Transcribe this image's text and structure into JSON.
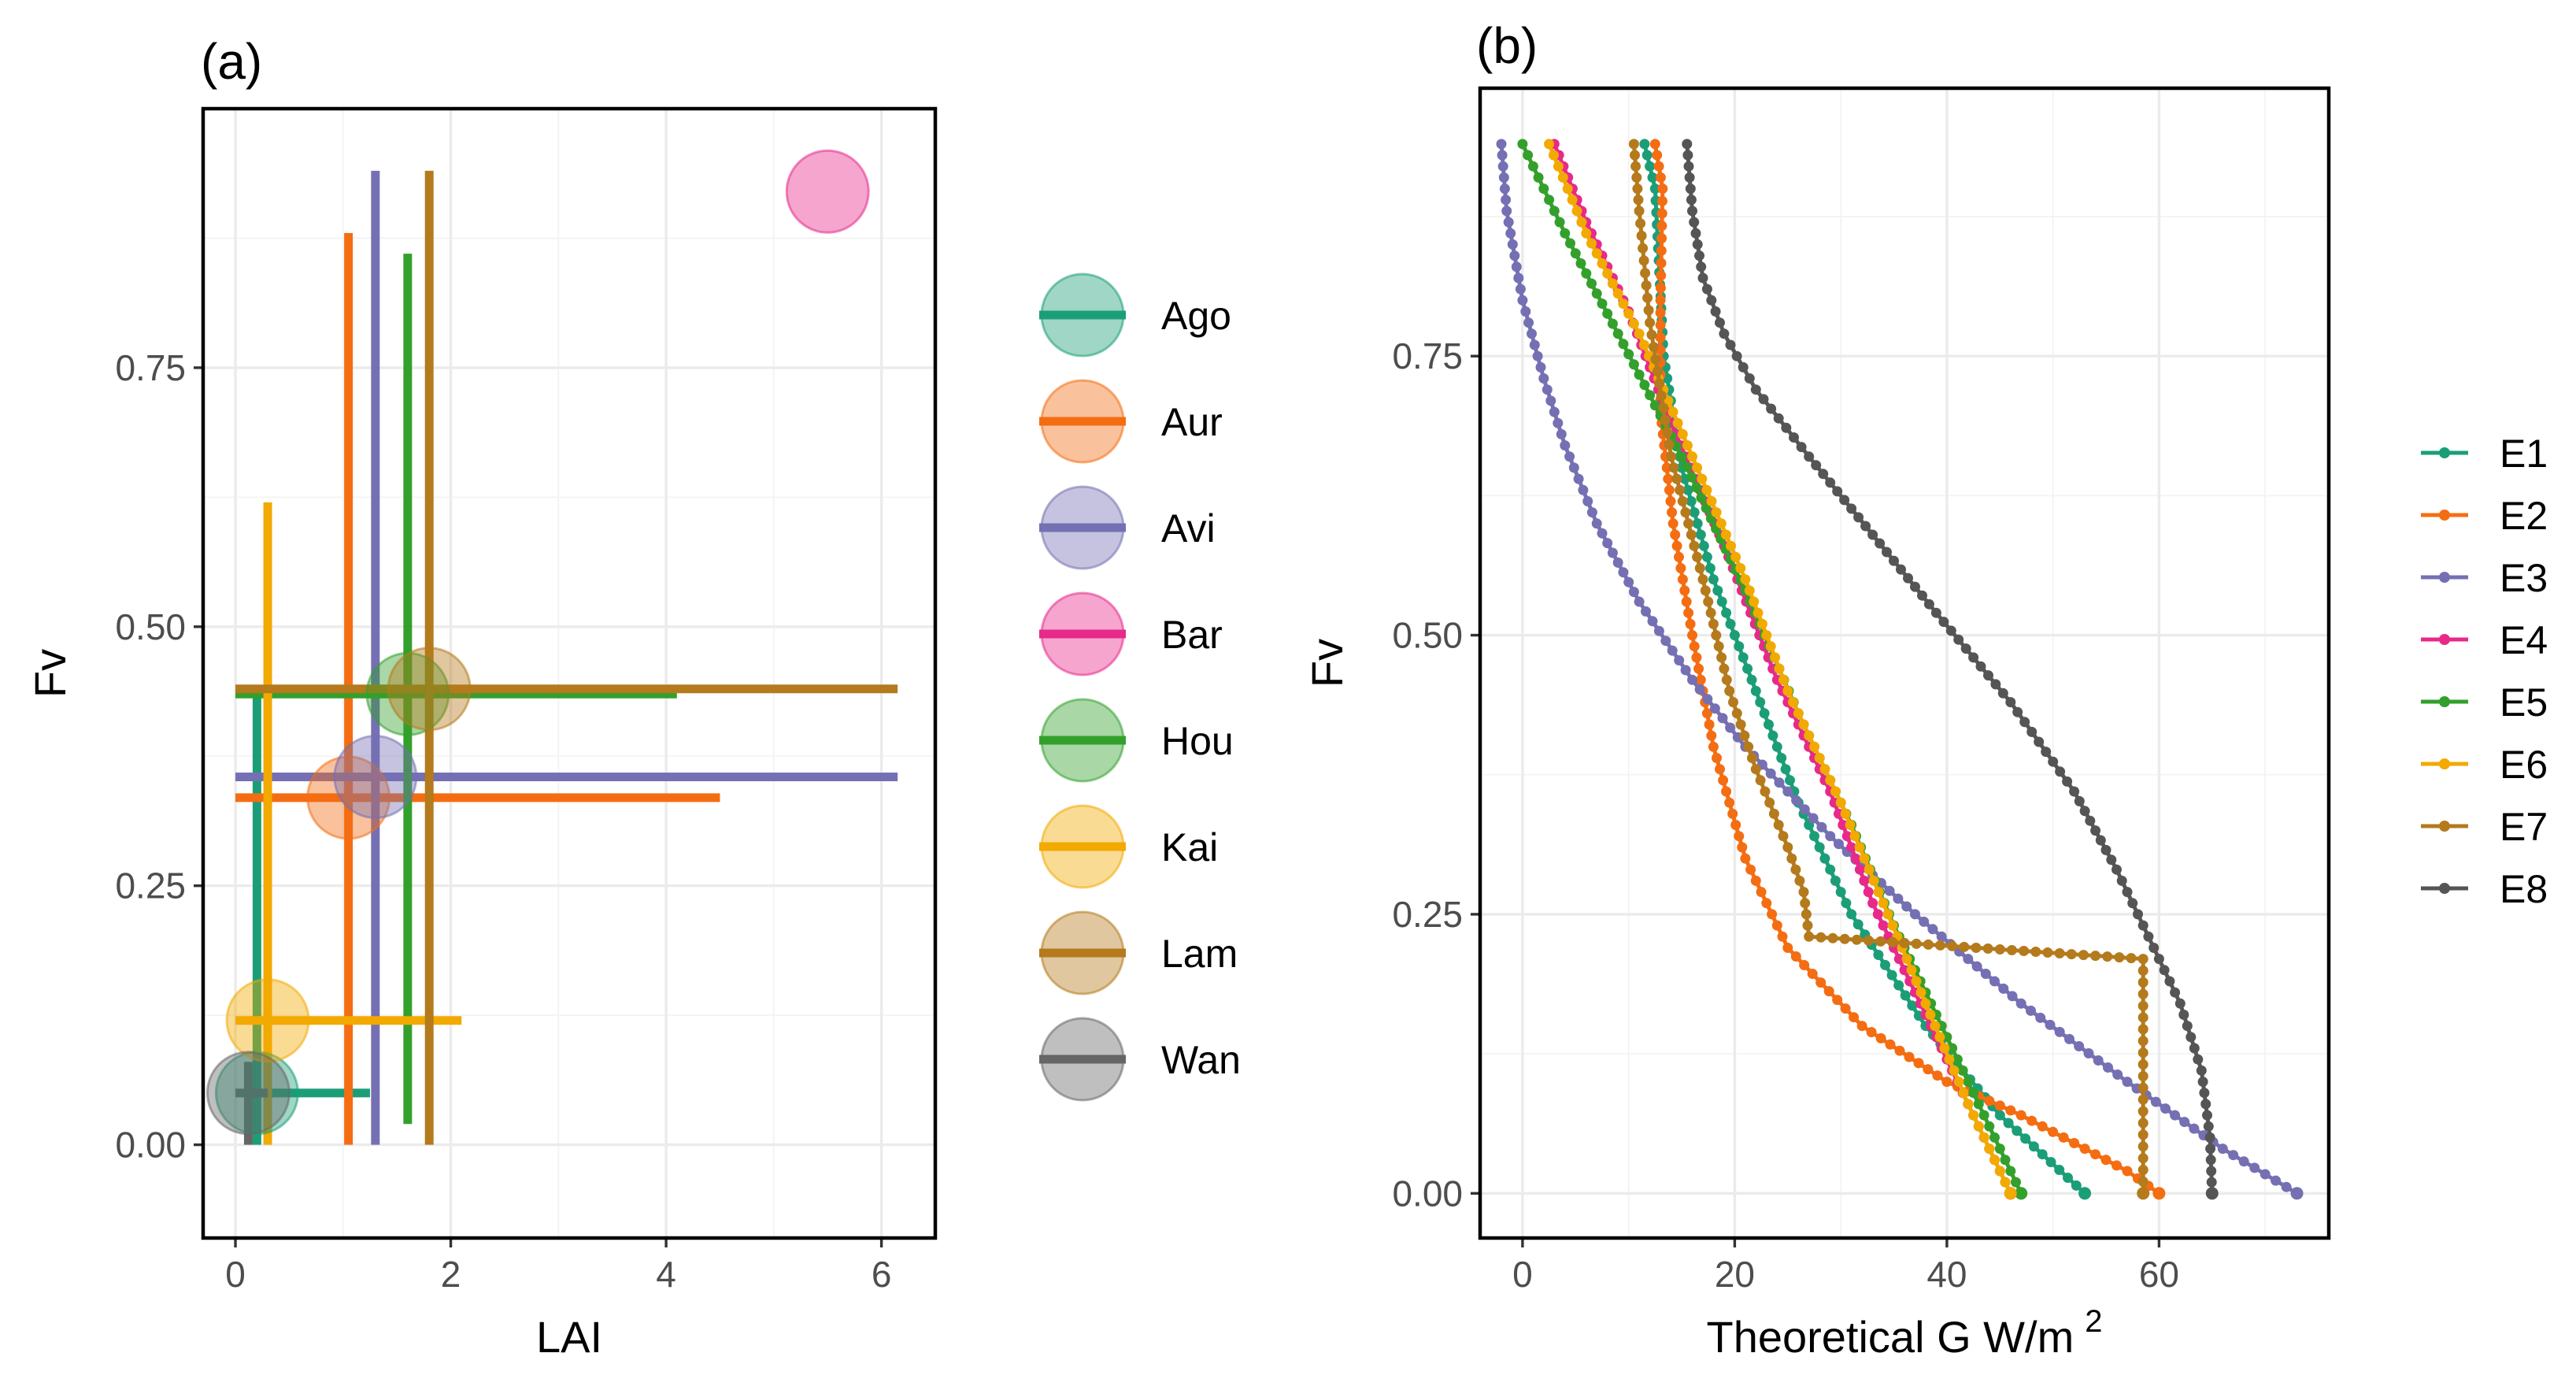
{
  "figure": {
    "chart_data": [
      {
        "panel": "(a)",
        "type": "scatter",
        "xlabel": "LAI",
        "ylabel": "Fv",
        "xlim": [
          -0.3,
          6.5
        ],
        "ylim": [
          -0.09,
          1.0
        ],
        "x_ticks": [
          0,
          2,
          4,
          6
        ],
        "x_tick_labels": [
          "0",
          "2",
          "4",
          "6"
        ],
        "y_ticks": [
          0,
          0.25,
          0.5,
          0.75
        ],
        "y_tick_labels": [
          "0.00",
          "0.25",
          "0.50",
          "0.75"
        ],
        "grid": true,
        "legend_position": "right",
        "series": [
          {
            "name": "Ago",
            "color": "#1b9e77",
            "lai": 0.2,
            "fv": 0.05,
            "lai_min": 0.1,
            "lai_max": 1.25,
            "fv_min": 0.0,
            "fv_max": 0.44
          },
          {
            "name": "Aur",
            "color": "#f46d12",
            "lai": 1.05,
            "fv": 0.335,
            "lai_min": 0.0,
            "lai_max": 4.5,
            "fv_min": 0.0,
            "fv_max": 0.88
          },
          {
            "name": "Avi",
            "color": "#7570b3",
            "lai": 1.3,
            "fv": 0.355,
            "lai_min": 0.0,
            "lai_max": 6.15,
            "fv_min": 0.0,
            "fv_max": 0.94
          },
          {
            "name": "Bar",
            "color": "#e7298a",
            "lai": 5.5,
            "fv": 0.92,
            "lai_min": 5.5,
            "lai_max": 5.5,
            "fv_min": 0.92,
            "fv_max": 0.92
          },
          {
            "name": "Hou",
            "color": "#33a02c",
            "lai": 1.6,
            "fv": 0.435,
            "lai_min": 0.0,
            "lai_max": 4.1,
            "fv_min": 0.02,
            "fv_max": 0.86
          },
          {
            "name": "Kai",
            "color": "#f2a900",
            "lai": 0.3,
            "fv": 0.12,
            "lai_min": 0.0,
            "lai_max": 2.1,
            "fv_min": 0.0,
            "fv_max": 0.62
          },
          {
            "name": "Lam",
            "color": "#b47a1c",
            "lai": 1.8,
            "fv": 0.44,
            "lai_min": 0.0,
            "lai_max": 6.15,
            "fv_min": 0.0,
            "fv_max": 0.94
          },
          {
            "name": "Wan",
            "color": "#666666",
            "lai": 0.12,
            "fv": 0.05,
            "lai_min": 0.0,
            "lai_max": 0.3,
            "fv_min": 0.0,
            "fv_max": 0.08
          }
        ]
      },
      {
        "panel": "(b)",
        "type": "line",
        "xlabel": "Theoretical G  W/m",
        "xlabel_sup": "2",
        "ylabel": "Fv",
        "xlim": [
          -4,
          76
        ],
        "ylim": [
          -0.04,
          0.99
        ],
        "x_ticks": [
          0,
          20,
          40,
          60
        ],
        "x_tick_labels": [
          "0",
          "20",
          "40",
          "60"
        ],
        "y_ticks": [
          0,
          0.25,
          0.5,
          0.75
        ],
        "y_tick_labels": [
          "0.00",
          "0.25",
          "0.50",
          "0.75"
        ],
        "grid": true,
        "legend_position": "right",
        "series": [
          {
            "name": "E1",
            "color": "#1b9e77",
            "points": [
              [
                11.5,
                0.94
              ],
              [
                12.5,
                0.9
              ],
              [
                13.3,
                0.75
              ],
              [
                15,
                0.65
              ],
              [
                18,
                0.55
              ],
              [
                22,
                0.45
              ],
              [
                26,
                0.35
              ],
              [
                31,
                0.25
              ],
              [
                38,
                0.15
              ],
              [
                45,
                0.07
              ],
              [
                53,
                0.0
              ]
            ]
          },
          {
            "name": "E2",
            "color": "#f46d12",
            "points": [
              [
                12.5,
                0.94
              ],
              [
                13.2,
                0.9
              ],
              [
                13.0,
                0.8
              ],
              [
                13.0,
                0.7
              ],
              [
                14.2,
                0.6
              ],
              [
                16,
                0.5
              ],
              [
                18,
                0.4
              ],
              [
                21,
                0.3
              ],
              [
                25,
                0.22
              ],
              [
                32,
                0.15
              ],
              [
                40,
                0.1
              ],
              [
                47,
                0.07
              ],
              [
                53,
                0.04
              ],
              [
                57,
                0.02
              ],
              [
                60,
                0.0
              ]
            ]
          },
          {
            "name": "E3",
            "color": "#7570b3",
            "points": [
              [
                -2,
                0.94
              ],
              [
                -1.5,
                0.88
              ],
              [
                0,
                0.8
              ],
              [
                2,
                0.73
              ],
              [
                4,
                0.67
              ],
              [
                7,
                0.6
              ],
              [
                11,
                0.53
              ],
              [
                16,
                0.46
              ],
              [
                21,
                0.4
              ],
              [
                29,
                0.32
              ],
              [
                37,
                0.25
              ],
              [
                47,
                0.17
              ],
              [
                57,
                0.1
              ],
              [
                66,
                0.04
              ],
              [
                73,
                0.0
              ]
            ]
          },
          {
            "name": "E4",
            "color": "#e7298a",
            "points": [
              [
                3,
                0.94
              ],
              [
                6,
                0.87
              ],
              [
                10,
                0.79
              ],
              [
                14,
                0.69
              ],
              [
                19,
                0.58
              ],
              [
                24,
                0.46
              ],
              [
                29,
                0.36
              ],
              [
                33,
                0.26
              ],
              [
                37,
                0.18
              ],
              [
                41,
                0.1
              ],
              [
                44,
                0.04
              ],
              [
                46,
                0.0
              ]
            ]
          },
          {
            "name": "E5",
            "color": "#33a02c",
            "points": [
              [
                0,
                0.94
              ],
              [
                4,
                0.86
              ],
              [
                9,
                0.77
              ],
              [
                15,
                0.66
              ],
              [
                21,
                0.54
              ],
              [
                26,
                0.43
              ],
              [
                31,
                0.33
              ],
              [
                35,
                0.24
              ],
              [
                40,
                0.14
              ],
              [
                44,
                0.06
              ],
              [
                47,
                0.0
              ]
            ]
          },
          {
            "name": "E6",
            "color": "#f2a900",
            "points": [
              [
                2.5,
                0.94
              ],
              [
                6,
                0.86
              ],
              [
                11,
                0.77
              ],
              [
                16,
                0.66
              ],
              [
                21,
                0.55
              ],
              [
                25,
                0.45
              ],
              [
                30,
                0.35
              ],
              [
                34,
                0.26
              ],
              [
                38,
                0.17
              ],
              [
                42,
                0.08
              ],
              [
                46,
                0.0
              ]
            ]
          },
          {
            "name": "E7",
            "color": "#b47a1c",
            "points": [
              [
                10.5,
                0.94
              ],
              [
                11,
                0.88
              ],
              [
                12,
                0.78
              ],
              [
                14,
                0.66
              ],
              [
                17,
                0.55
              ],
              [
                19.5,
                0.45
              ],
              [
                22,
                0.38
              ],
              [
                25,
                0.31
              ],
              [
                26.5,
                0.27
              ],
              [
                27,
                0.23
              ],
              [
                58.5,
                0.21
              ],
              [
                58.5,
                0.0
              ]
            ]
          },
          {
            "name": "E8",
            "color": "#555555",
            "points": [
              [
                15.5,
                0.94
              ],
              [
                16,
                0.88
              ],
              [
                17,
                0.82
              ],
              [
                19,
                0.77
              ],
              [
                22,
                0.72
              ],
              [
                27,
                0.66
              ],
              [
                33,
                0.59
              ],
              [
                39,
                0.52
              ],
              [
                46,
                0.44
              ],
              [
                52,
                0.36
              ],
              [
                56,
                0.29
              ],
              [
                59,
                0.23
              ],
              [
                62,
                0.17
              ],
              [
                64,
                0.11
              ],
              [
                64.8,
                0.05
              ],
              [
                65,
                0.0
              ]
            ]
          }
        ]
      }
    ]
  }
}
